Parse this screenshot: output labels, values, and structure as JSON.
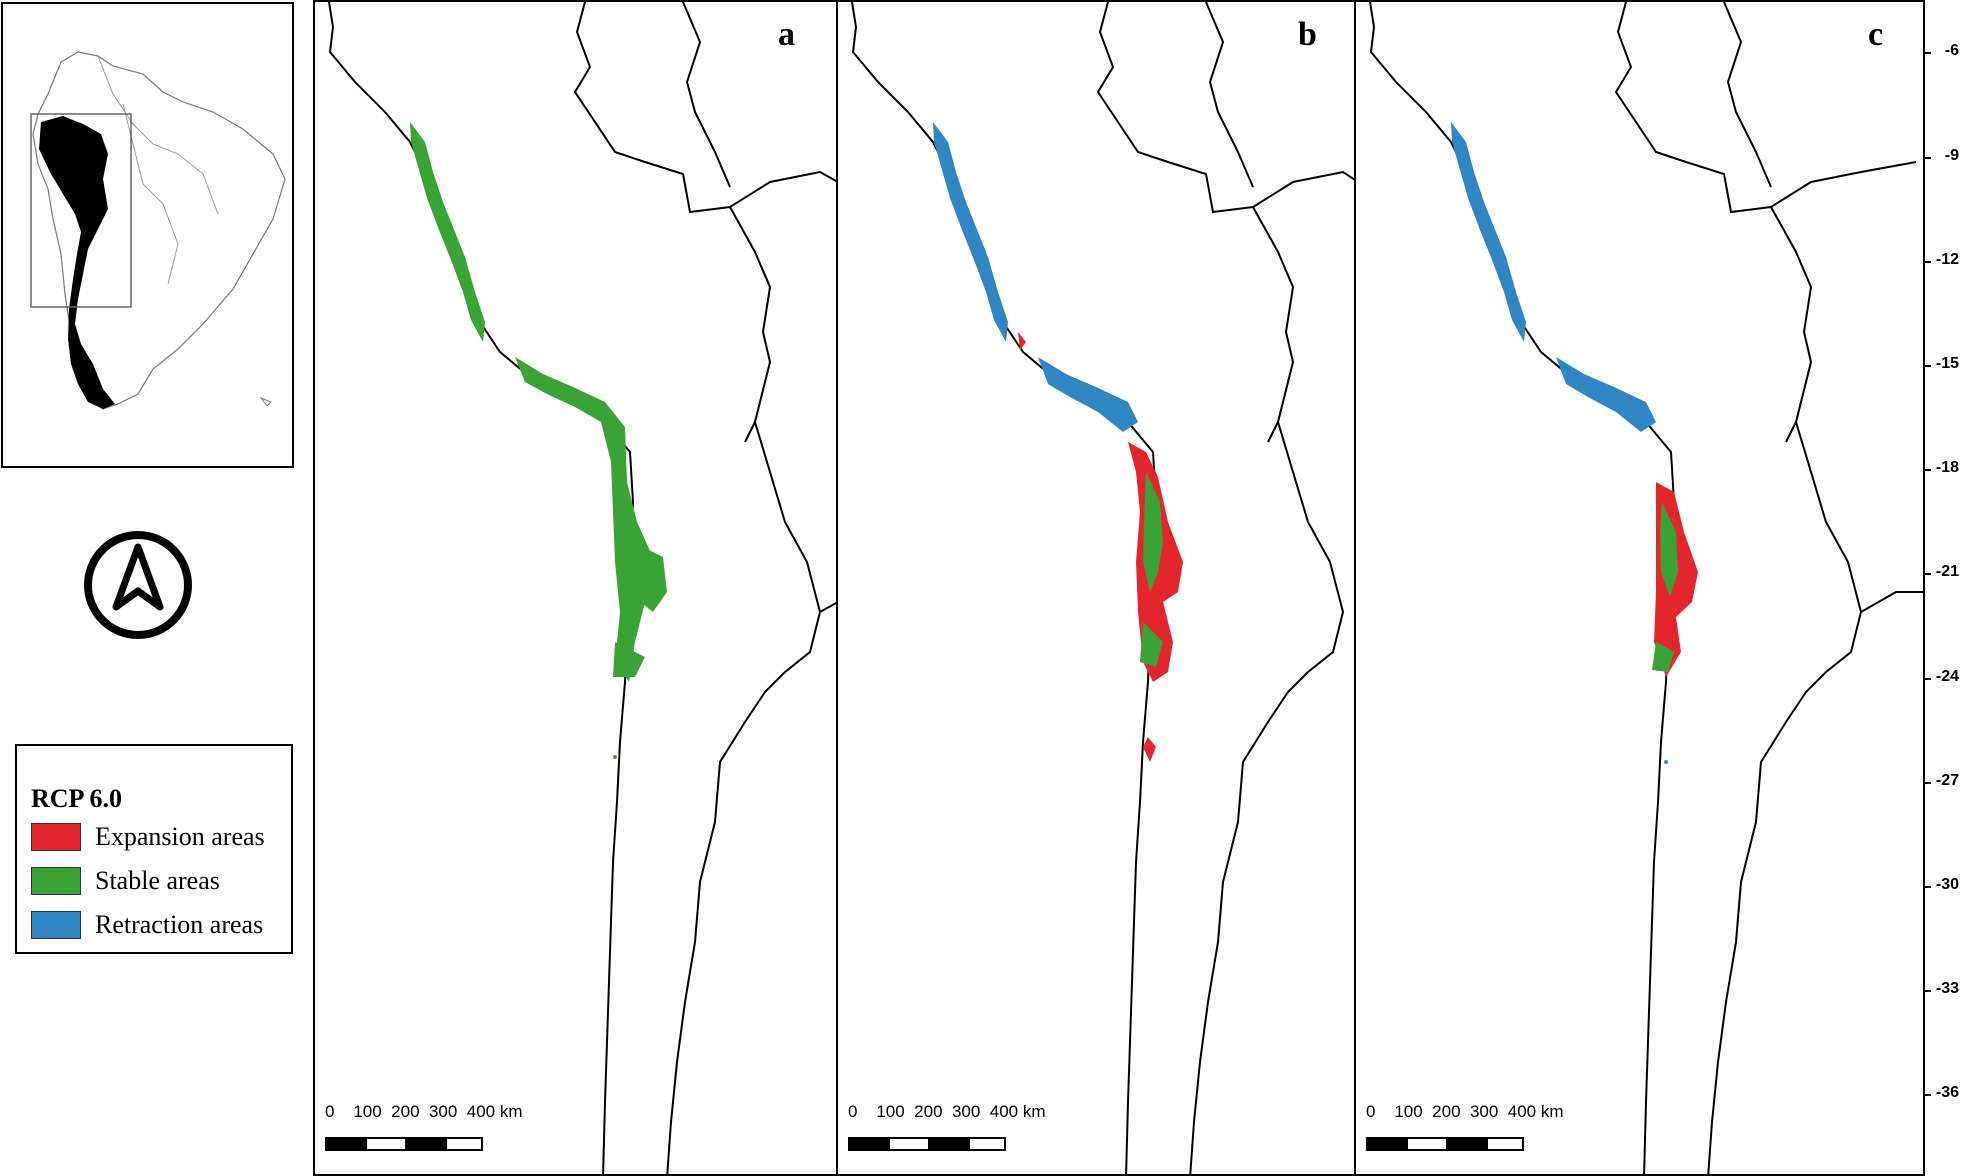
{
  "panels": [
    {
      "id": "a",
      "letter": "a"
    },
    {
      "id": "b",
      "letter": "b"
    },
    {
      "id": "c",
      "letter": "c"
    }
  ],
  "scale_bar": {
    "labels": "0    100  200  300  400 km"
  },
  "latitude_labels": [
    "-6",
    "-9",
    "-12",
    "-15",
    "-18",
    "-21",
    "-24",
    "-27",
    "-30",
    "-33",
    "-36"
  ],
  "legend": {
    "title": "RCP 6.0",
    "items": [
      {
        "label": "Expansion areas",
        "color": "#e3262b"
      },
      {
        "label": "Stable areas",
        "color": "#3aa335"
      },
      {
        "label": "Retraction areas",
        "color": "#2f86c3"
      }
    ]
  },
  "icons": {
    "north_arrow": "north-arrow-icon",
    "inset_map": "south-america-inset-map"
  },
  "colors": {
    "border": "#000000",
    "country": "#000000"
  }
}
